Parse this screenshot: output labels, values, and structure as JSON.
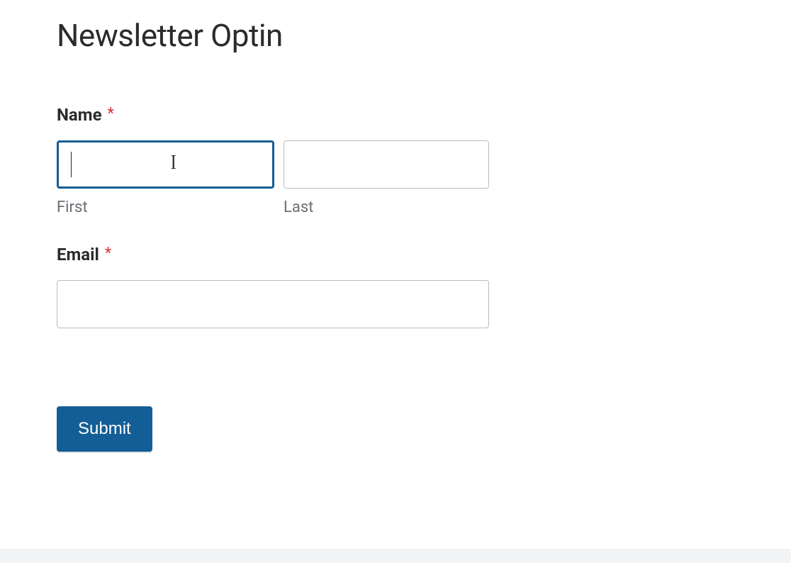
{
  "page": {
    "title": "Newsletter Optin",
    "background_color": "#ffffff",
    "footer_strip_color": "#f3f4f5"
  },
  "form": {
    "name": {
      "label": "Name",
      "required_mark": "*",
      "required_color": "#d63638",
      "first": {
        "sub_label": "First",
        "value": "",
        "focused": true,
        "border_color_focused": "#135e96"
      },
      "last": {
        "sub_label": "Last",
        "value": "",
        "focused": false,
        "border_color": "#b9bcc0"
      }
    },
    "email": {
      "label": "Email",
      "required_mark": "*",
      "value": ""
    },
    "submit": {
      "label": "Submit",
      "background_color": "#135e96",
      "text_color": "#ffffff"
    }
  },
  "typography": {
    "title_fontsize": 44,
    "label_fontsize": 24,
    "sublabel_fontsize": 22,
    "sublabel_color": "#6a6f75",
    "button_fontsize": 24
  }
}
